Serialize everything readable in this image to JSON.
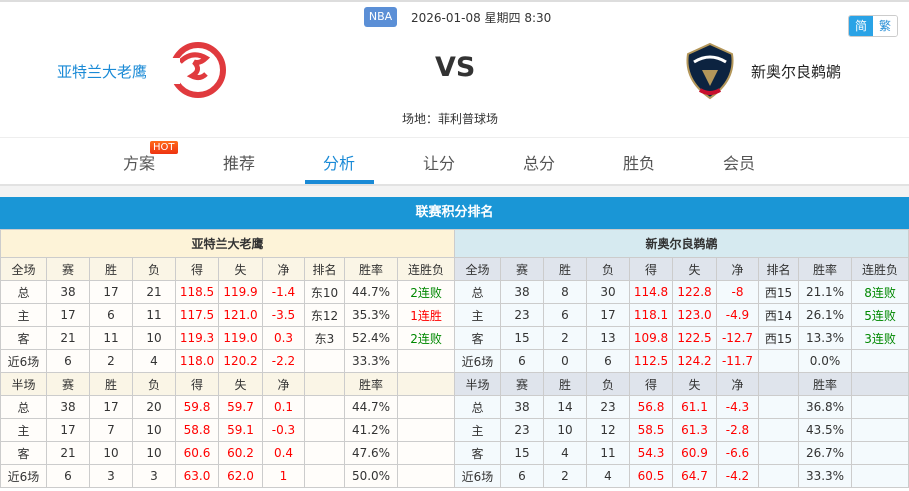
{
  "header": {
    "league": "NBA",
    "datetime": "2026-01-08 星期四 8:30",
    "lang": [
      "简",
      "繁"
    ],
    "home": "亚特兰大老鹰",
    "away": "新奥尔良鹈鹕",
    "vs": "VS",
    "venue": "场地：菲利普球场"
  },
  "tabs": [
    {
      "label": "方案",
      "badge": "HOT"
    },
    {
      "label": "推荐"
    },
    {
      "label": "分析",
      "active": true
    },
    {
      "label": "让分"
    },
    {
      "label": "总分"
    },
    {
      "label": "胜负"
    },
    {
      "label": "会员"
    }
  ],
  "section_title": "联赛积分排名",
  "colors": {
    "accent": "#1a96d6",
    "red": "#ff0000",
    "green": "#008800"
  },
  "tables": [
    {
      "team": "亚特兰大老鹰",
      "full_header": [
        "全场",
        "赛",
        "胜",
        "负",
        "得",
        "失",
        "净",
        "排名",
        "胜率",
        "连胜负"
      ],
      "full_rows": [
        [
          "总",
          "38",
          "17",
          "21",
          "118.5",
          "119.9",
          "-1.4",
          "东10",
          "44.7%",
          "2连败"
        ],
        [
          "主",
          "17",
          "6",
          "11",
          "117.5",
          "121.0",
          "-3.5",
          "东12",
          "35.3%",
          "1连胜"
        ],
        [
          "客",
          "21",
          "11",
          "10",
          "119.3",
          "119.0",
          "0.3",
          "东3",
          "52.4%",
          "2连败"
        ],
        [
          "近6场",
          "6",
          "2",
          "4",
          "118.0",
          "120.2",
          "-2.2",
          "",
          "33.3%",
          ""
        ]
      ],
      "half_header": [
        "半场",
        "赛",
        "胜",
        "负",
        "得",
        "失",
        "净",
        "",
        "胜率",
        ""
      ],
      "half_rows": [
        [
          "总",
          "38",
          "17",
          "20",
          "59.8",
          "59.7",
          "0.1",
          "",
          "44.7%",
          ""
        ],
        [
          "主",
          "17",
          "7",
          "10",
          "58.8",
          "59.1",
          "-0.3",
          "",
          "41.2%",
          ""
        ],
        [
          "客",
          "21",
          "10",
          "10",
          "60.6",
          "60.2",
          "0.4",
          "",
          "47.6%",
          ""
        ],
        [
          "近6场",
          "6",
          "3",
          "3",
          "63.0",
          "62.0",
          "1",
          "",
          "50.0%",
          ""
        ]
      ]
    },
    {
      "team": "新奥尔良鹈鹕",
      "full_header": [
        "全场",
        "赛",
        "胜",
        "负",
        "得",
        "失",
        "净",
        "排名",
        "胜率",
        "连胜负"
      ],
      "full_rows": [
        [
          "总",
          "38",
          "8",
          "30",
          "114.8",
          "122.8",
          "-8",
          "西15",
          "21.1%",
          "8连败"
        ],
        [
          "主",
          "23",
          "6",
          "17",
          "118.1",
          "123.0",
          "-4.9",
          "西14",
          "26.1%",
          "5连败"
        ],
        [
          "客",
          "15",
          "2",
          "13",
          "109.8",
          "122.5",
          "-12.7",
          "西15",
          "13.3%",
          "3连败"
        ],
        [
          "近6场",
          "6",
          "0",
          "6",
          "112.5",
          "124.2",
          "-11.7",
          "",
          "0.0%",
          ""
        ]
      ],
      "half_header": [
        "半场",
        "赛",
        "胜",
        "负",
        "得",
        "失",
        "净",
        "",
        "胜率",
        ""
      ],
      "half_rows": [
        [
          "总",
          "38",
          "14",
          "23",
          "56.8",
          "61.1",
          "-4.3",
          "",
          "36.8%",
          ""
        ],
        [
          "主",
          "23",
          "10",
          "12",
          "58.5",
          "61.3",
          "-2.8",
          "",
          "43.5%",
          ""
        ],
        [
          "客",
          "15",
          "4",
          "11",
          "54.3",
          "60.9",
          "-6.6",
          "",
          "26.7%",
          ""
        ],
        [
          "近6场",
          "6",
          "2",
          "4",
          "60.5",
          "64.7",
          "-4.2",
          "",
          "33.3%",
          ""
        ]
      ]
    }
  ]
}
